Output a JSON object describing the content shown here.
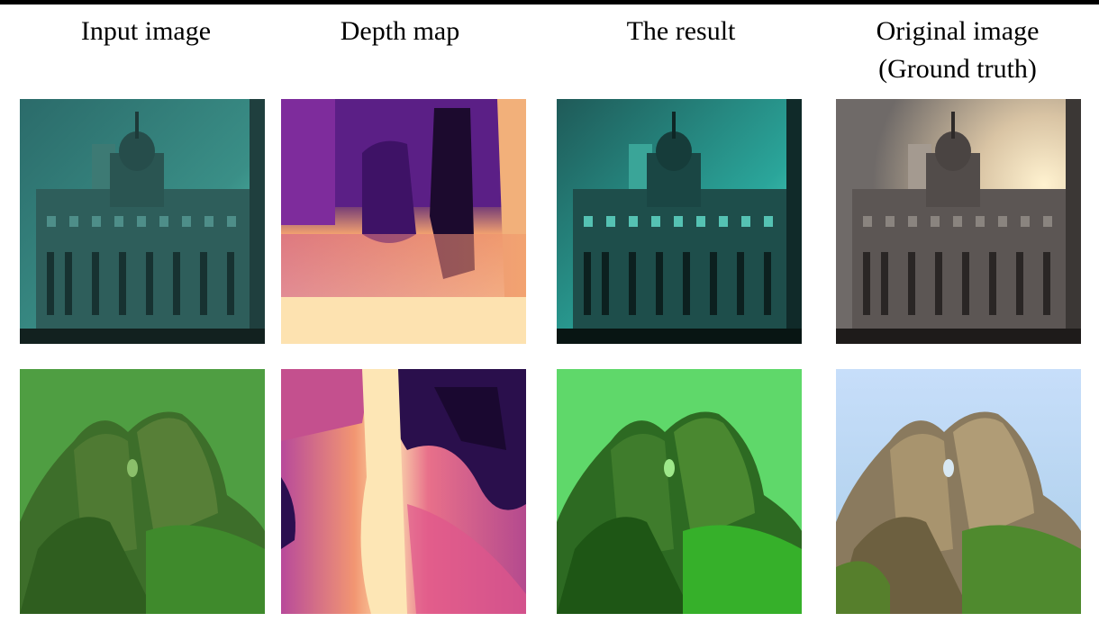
{
  "headers": {
    "input": "Input image",
    "depth": "Depth map",
    "result": "The result",
    "original_line1": "Original image",
    "original_line2": "(Ground truth)"
  },
  "rows": [
    {
      "scene": "building"
    },
    {
      "scene": "mountain"
    }
  ]
}
